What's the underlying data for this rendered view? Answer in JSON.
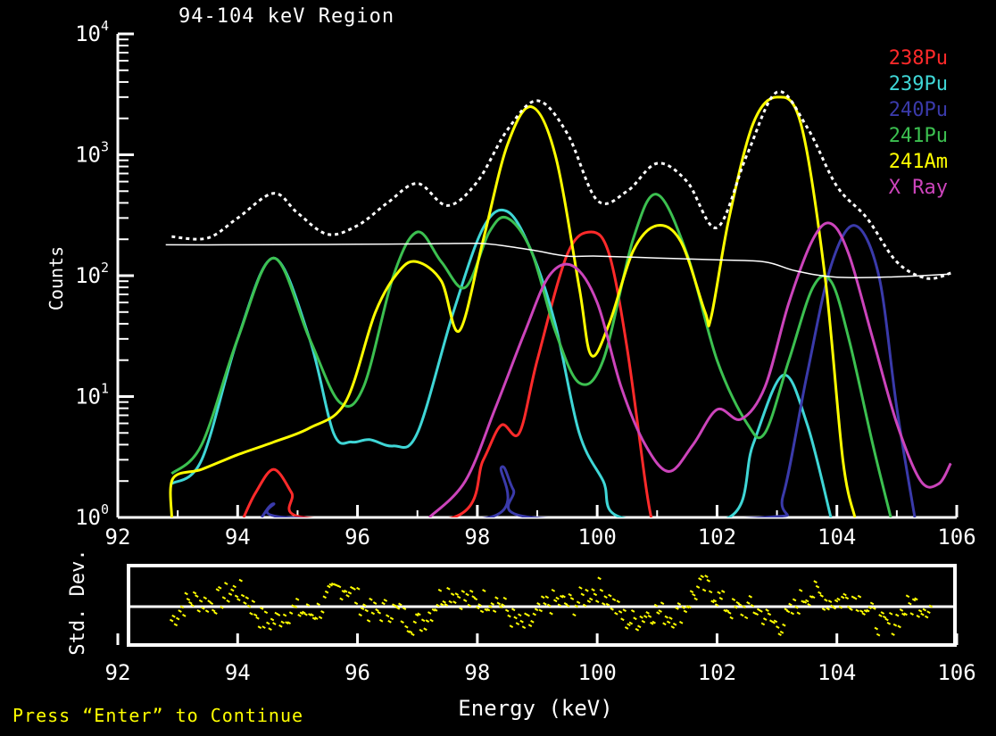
{
  "prompt": "Press “Enter” to Continue",
  "chart_data": [
    {
      "type": "line",
      "title": "94-104 keV Region",
      "ylabel": "Counts",
      "yscale": "log",
      "ylim": [
        1,
        10000
      ],
      "xlim": [
        92,
        106
      ],
      "x_ticks": [
        "92",
        "94",
        "96",
        "98",
        "100",
        "102",
        "104",
        "106"
      ],
      "y_ticks": [
        {
          "base": "10",
          "exp": "0"
        },
        {
          "base": "10",
          "exp": "1"
        },
        {
          "base": "10",
          "exp": "2"
        },
        {
          "base": "10",
          "exp": "3"
        },
        {
          "base": "10",
          "exp": "4"
        }
      ],
      "legend_position": "top-right",
      "series": [
        {
          "name": "238Pu",
          "color": "#ff2a2a",
          "x": [
            94.1,
            94.3,
            94.6,
            94.9,
            95.1,
            97.6,
            98.1,
            98.4,
            98.7,
            99.0,
            99.5,
            99.9,
            100.2,
            100.5,
            100.8,
            100.9
          ],
          "y": [
            1.0,
            1.6,
            2.5,
            1.6,
            1.0,
            1.0,
            3.0,
            5.8,
            5.0,
            20,
            150,
            230,
            150,
            25,
            2.0,
            1.0
          ]
        },
        {
          "name": "239Pu",
          "color": "#3fd6d6",
          "x": [
            92.9,
            93.4,
            94.0,
            94.6,
            95.2,
            95.6,
            95.9,
            96.2,
            96.6,
            97.0,
            97.6,
            98.1,
            98.5,
            98.9,
            99.3,
            99.7,
            100.1,
            100.4,
            102.2,
            102.6,
            103.1,
            103.5,
            103.9
          ],
          "y": [
            1.9,
            3.0,
            30,
            140,
            30,
            5.0,
            4.2,
            4.4,
            3.9,
            5.0,
            50,
            250,
            340,
            160,
            40,
            5.0,
            2.0,
            1.0,
            1.0,
            4.0,
            15,
            6.0,
            1.0
          ]
        },
        {
          "name": "240Pu",
          "color": "#3a3aaa",
          "x": [
            94.4,
            94.6,
            94.8,
            98.2,
            98.4,
            98.6,
            98.9,
            102.8,
            103.1,
            103.5,
            103.9,
            104.3,
            104.7,
            105.0,
            105.3
          ],
          "y": [
            1.0,
            1.3,
            1.0,
            1.0,
            2.6,
            1.7,
            1.0,
            1.0,
            1.5,
            15,
            120,
            260,
            100,
            8.0,
            1.0
          ]
        },
        {
          "name": "241Pu",
          "color": "#3cc050",
          "x": [
            92.9,
            93.4,
            94.0,
            94.6,
            95.2,
            95.7,
            96.1,
            96.6,
            97.0,
            97.4,
            97.8,
            98.2,
            98.5,
            98.9,
            99.3,
            99.7,
            100.1,
            100.6,
            101.0,
            101.5,
            102.0,
            102.5,
            102.8,
            103.2,
            103.6,
            103.9,
            104.2,
            104.6,
            104.9
          ],
          "y": [
            2.3,
            4.0,
            30,
            140,
            30,
            9.0,
            12,
            100,
            230,
            130,
            80,
            230,
            300,
            160,
            35,
            13,
            20,
            200,
            470,
            150,
            20,
            6.0,
            5.0,
            20,
            80,
            90,
            30,
            4.0,
            1.0
          ]
        },
        {
          "name": "241Am",
          "color": "#ffff00",
          "x": [
            92.9,
            92.92,
            93.4,
            94.0,
            94.6,
            95.2,
            95.8,
            96.3,
            96.7,
            97.0,
            97.4,
            97.7,
            98.1,
            98.5,
            98.9,
            99.3,
            99.7,
            99.9,
            100.2,
            100.6,
            101.0,
            101.4,
            101.8,
            101.9,
            102.2,
            102.6,
            103.0,
            103.4,
            103.8,
            104.1,
            104.3
          ],
          "y": [
            1.0,
            2.1,
            2.5,
            3.3,
            4.2,
            5.5,
            9.0,
            50,
            110,
            130,
            90,
            35,
            200,
            1200,
            2500,
            1000,
            80,
            22,
            40,
            160,
            260,
            190,
            50,
            45,
            300,
            1800,
            3000,
            1800,
            100,
            3.0,
            1.0
          ]
        },
        {
          "name": "X Ray",
          "color": "#cc44bb",
          "x": [
            97.2,
            97.8,
            98.3,
            98.8,
            99.2,
            99.6,
            100.0,
            100.4,
            100.8,
            101.2,
            101.6,
            102.0,
            102.4,
            102.8,
            103.2,
            103.6,
            103.9,
            104.2,
            104.6,
            105.0,
            105.4,
            105.7,
            105.9
          ],
          "y": [
            1.0,
            2.0,
            8.0,
            35,
            100,
            120,
            60,
            12,
            4.0,
            2.4,
            4.0,
            7.8,
            6.5,
            12,
            60,
            200,
            270,
            150,
            30,
            6.0,
            2.0,
            1.9,
            2.8
          ]
        },
        {
          "name": "",
          "color": "#ffffff",
          "style": "dotted",
          "x": [
            92.9,
            93.5,
            94.0,
            94.6,
            95.0,
            95.5,
            96.0,
            96.5,
            97.0,
            97.5,
            98.0,
            98.5,
            99.0,
            99.5,
            100.0,
            100.5,
            101.0,
            101.5,
            102.0,
            102.5,
            103.0,
            103.5,
            104.0,
            104.5,
            105.0,
            105.5,
            105.9
          ],
          "y": [
            210,
            205,
            300,
            480,
            330,
            220,
            260,
            400,
            580,
            380,
            600,
            1600,
            2800,
            1500,
            420,
            500,
            850,
            600,
            250,
            1000,
            3300,
            1700,
            550,
            300,
            130,
            95,
            105
          ]
        },
        {
          "name": "",
          "color": "#ffffff",
          "style": "thin",
          "x": [
            92.8,
            94.0,
            95.0,
            96.0,
            97.0,
            98.0,
            98.5,
            99.0,
            99.5,
            100.0,
            101.0,
            102.0,
            102.8,
            103.3,
            104.0,
            105.0,
            105.9
          ],
          "y": [
            180,
            180,
            181,
            182,
            183,
            185,
            175,
            160,
            145,
            145,
            140,
            135,
            130,
            110,
            97,
            98,
            103
          ]
        }
      ]
    },
    {
      "type": "scatter",
      "xlabel": "Energy (keV)",
      "ylabel": "Std. Dev.",
      "xlim": [
        92,
        106
      ],
      "ylim": [
        -1,
        1
      ],
      "x_ticks": [
        "92",
        "94",
        "96",
        "98",
        "100",
        "102",
        "104",
        "106"
      ],
      "color": "#ffff00",
      "reference_line": 0,
      "x_range": [
        92.9,
        105.6
      ]
    }
  ]
}
